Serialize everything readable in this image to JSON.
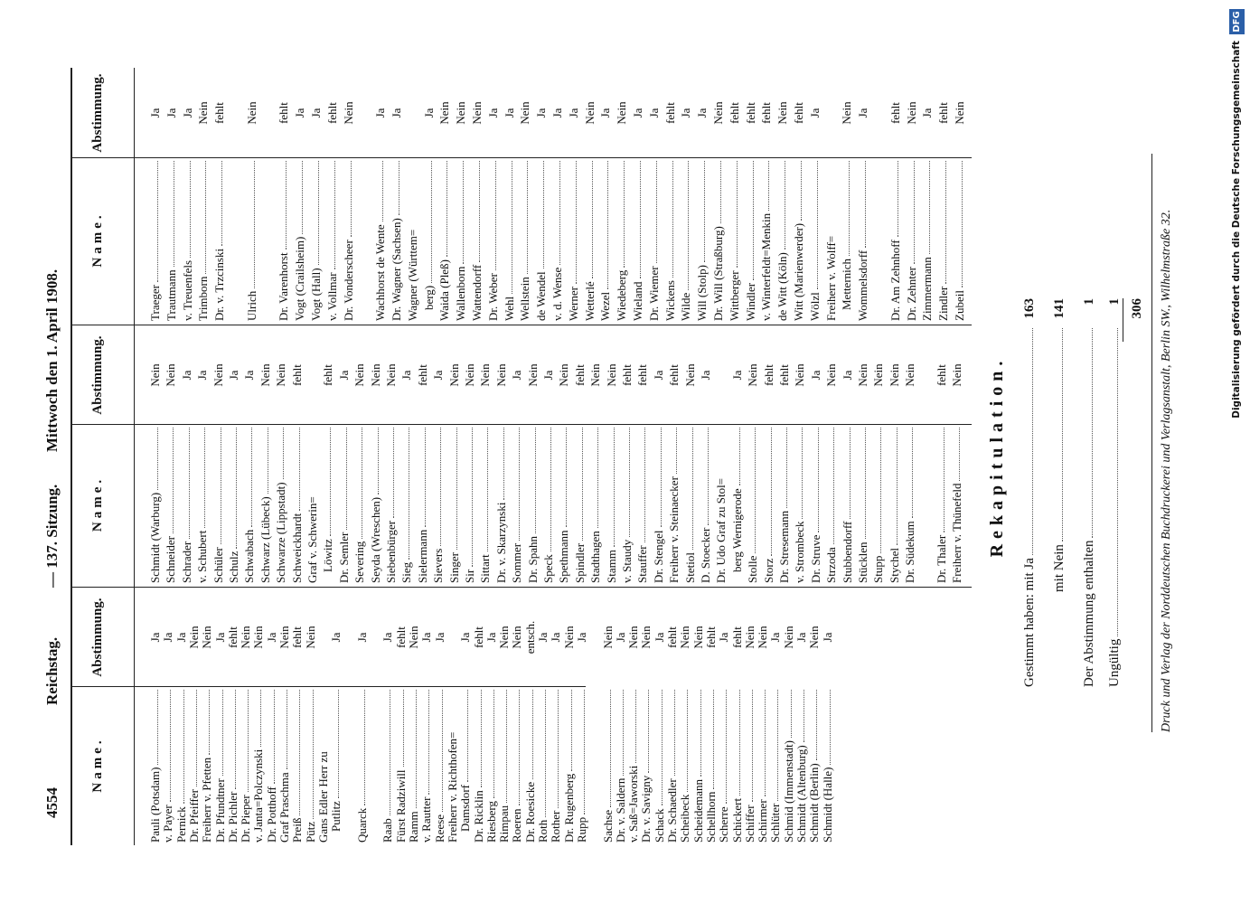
{
  "header": {
    "page_number": "4554",
    "body": "Reichstag.",
    "session": "— 137. Sitzung.",
    "date": "Mittwoch den 1. April 1908."
  },
  "table": {
    "columns": [
      {
        "name_heading": "Name.",
        "vote_heading": "Abstimmung.",
        "groups": [
          {
            "rows": [
              {
                "name": "Pauli (Potsdam)",
                "vote": "Ja"
              },
              {
                "name": "v. Payer",
                "vote": "Ja"
              },
              {
                "name": "Pernick",
                "vote": "Ja"
              },
              {
                "name": "Dr. Pfeiffer",
                "vote": "Nein"
              },
              {
                "name": "Freiherr v. Pfetten",
                "vote": "Nein"
              },
              {
                "name": "Dr. Pfundtner",
                "vote": "Ja"
              },
              {
                "name": "Dr. Pichler",
                "vote": "fehlt"
              },
              {
                "name": "Dr. Pieper",
                "vote": "Nein"
              },
              {
                "name": "v. Janta=Polczynski",
                "vote": "Nein"
              },
              {
                "name": "Dr. Potthoff",
                "vote": "Ja"
              },
              {
                "name": "Graf Praschma",
                "vote": "Nein"
              },
              {
                "name": "Preiß",
                "vote": "fehlt"
              },
              {
                "name": "Pütz",
                "vote": "Nein"
              },
              {
                "name": [
                  "Gans Edler Herr zu",
                  "Putlitz"
                ],
                "vote": "Ja"
              }
            ]
          },
          {
            "rows": [
              {
                "name": "Quarck",
                "vote": "Ja"
              }
            ]
          },
          {
            "rows": [
              {
                "name": "Raab",
                "vote": "Ja"
              },
              {
                "name": "Fürst Radziwill",
                "vote": "fehlt"
              },
              {
                "name": "Ramm",
                "vote": "Nein"
              },
              {
                "name": "v. Rautter",
                "vote": "Ja"
              },
              {
                "name": "Reese",
                "vote": "Ja"
              },
              {
                "name": [
                  "Freiherr v. Richthofen=",
                  "Damsdorf"
                ],
                "vote": "Ja"
              },
              {
                "name": "Dr. Ricklin",
                "vote": "fehlt"
              },
              {
                "name": "Riesberg",
                "vote": "Ja"
              },
              {
                "name": "Rimpau",
                "vote": "Nein"
              },
              {
                "name": "Roeren",
                "vote": "Nein"
              },
              {
                "name": "Dr. Roesicke",
                "vote": "entsch."
              },
              {
                "name": "Roth",
                "vote": "Ja"
              },
              {
                "name": "Rother",
                "vote": "Ja"
              },
              {
                "name": "Dr. Rugenberg",
                "vote": "Nein"
              },
              {
                "name": "Rupp",
                "vote": "Ja"
              }
            ]
          },
          {
            "rows": [
              {
                "name": "Sachse",
                "vote": "Nein"
              },
              {
                "name": "Dr. v. Saldern",
                "vote": "Ja"
              },
              {
                "name": "v. Saß=Jaworski",
                "vote": "Nein"
              },
              {
                "name": "Dr. v. Savigny",
                "vote": "Nein"
              },
              {
                "name": "Schack",
                "vote": "Ja"
              },
              {
                "name": "Dr. Schaedler",
                "vote": "fehlt"
              },
              {
                "name": "Scheibeck",
                "vote": "Nein"
              },
              {
                "name": "Scheidemann",
                "vote": "Nein"
              },
              {
                "name": "Schellhorn",
                "vote": "fehlt"
              },
              {
                "name": "Scherre",
                "vote": "Ja"
              },
              {
                "name": "Schickert",
                "vote": "fehlt"
              },
              {
                "name": "Schiffer",
                "vote": "Nein"
              },
              {
                "name": "Schirmer",
                "vote": "Nein"
              },
              {
                "name": "Schlüter",
                "vote": "Ja"
              },
              {
                "name": "Schmid (Immenstadt)",
                "vote": "Nein"
              },
              {
                "name": "Schmidt (Altenburg)",
                "vote": "Ja"
              },
              {
                "name": "Schmidt (Berlin)",
                "vote": "Nein"
              },
              {
                "name": "Schmidt (Halle)",
                "vote": "Ja"
              }
            ]
          }
        ]
      },
      {
        "name_heading": "Name.",
        "vote_heading": "Abstimmung.",
        "groups": [
          {
            "rows": [
              {
                "name": "Schmidt (Warburg)",
                "vote": "Nein"
              },
              {
                "name": "Schneider",
                "vote": "Nein"
              },
              {
                "name": "Schrader",
                "vote": "Ja"
              },
              {
                "name": "v. Schubert",
                "vote": "Ja"
              },
              {
                "name": "Schüler",
                "vote": "Nein"
              },
              {
                "name": "Schulz",
                "vote": "Ja"
              },
              {
                "name": "Schwabach",
                "vote": "Ja"
              },
              {
                "name": "Schwarz (Lübeck)",
                "vote": "Nein"
              },
              {
                "name": "Schwarze (Lippstadt)",
                "vote": "Nein"
              },
              {
                "name": "Schweickhardt",
                "vote": "fehlt"
              },
              {
                "name": [
                  "Graf v. Schwerin=",
                  "Löwitz"
                ],
                "vote": "fehlt"
              },
              {
                "name": "Dr. Semler",
                "vote": "Ja"
              },
              {
                "name": "Severing",
                "vote": "Nein"
              },
              {
                "name": "Seyda (Wreschen)",
                "vote": "Nein"
              },
              {
                "name": "Siebenbürger",
                "vote": "Nein"
              },
              {
                "name": "Sieg",
                "vote": "Ja"
              },
              {
                "name": "Sielermann",
                "vote": "fehlt"
              },
              {
                "name": "Sievers",
                "vote": "Ja"
              },
              {
                "name": "Singer",
                "vote": "Nein"
              },
              {
                "name": "Sir",
                "vote": "Nein"
              },
              {
                "name": "Sittart",
                "vote": "Nein"
              },
              {
                "name": "Dr. v. Skarzynski",
                "vote": "Nein"
              },
              {
                "name": "Sommer",
                "vote": "Ja"
              },
              {
                "name": "Dr. Spahn",
                "vote": "Nein"
              },
              {
                "name": "Speck",
                "vote": "Ja"
              },
              {
                "name": "Spethmann",
                "vote": "Nein"
              },
              {
                "name": "Spindler",
                "vote": "fehlt"
              },
              {
                "name": "Stadthagen",
                "vote": "Nein"
              },
              {
                "name": "Stamm",
                "vote": "Nein"
              },
              {
                "name": "v. Staudy",
                "vote": "fehlt"
              },
              {
                "name": "Stauffer",
                "vote": "fehlt"
              },
              {
                "name": "Dr. Stengel",
                "vote": "Ja"
              },
              {
                "name": "Freiherr v. Steinaecker",
                "vote": "fehlt"
              },
              {
                "name": "Stetiol",
                "vote": "Nein"
              },
              {
                "name": "D. Stoecker",
                "vote": "Ja"
              },
              {
                "name": [
                  "Dr. Udo Graf zu Stol=",
                  "berg Wernigerode"
                ],
                "vote": "Ja"
              },
              {
                "name": "Stolle",
                "vote": "Nein"
              },
              {
                "name": "Storz",
                "vote": "fehlt"
              },
              {
                "name": "Dr. Stresemann",
                "vote": "fehlt"
              },
              {
                "name": "v. Strombeck",
                "vote": "Nein"
              },
              {
                "name": "Dr. Struve",
                "vote": "Ja"
              },
              {
                "name": "Strzoda",
                "vote": "Nein"
              },
              {
                "name": "Stubbendorff",
                "vote": "Ja"
              },
              {
                "name": "Stücklen",
                "vote": "Nein"
              },
              {
                "name": "Stupp",
                "vote": "Nein"
              },
              {
                "name": "Stychel",
                "vote": "Nein"
              },
              {
                "name": "Dr. Südekum",
                "vote": "Nein"
              }
            ]
          },
          {
            "rows": [
              {
                "name": "Dr. Thaler",
                "vote": "fehlt"
              },
              {
                "name": "Freiherr v. Thünefeld",
                "vote": "Nein"
              }
            ]
          }
        ]
      },
      {
        "name_heading": "Name.",
        "vote_heading": "Abstimmung.",
        "groups": [
          {
            "rows": [
              {
                "name": "Traeger",
                "vote": "Ja"
              },
              {
                "name": "Trautmann",
                "vote": "Ja"
              },
              {
                "name": "v. Treuenfels",
                "vote": "Ja"
              },
              {
                "name": "Trimborn",
                "vote": "Nein"
              },
              {
                "name": "Dr. v. Trzcinski",
                "vote": "fehlt"
              }
            ]
          },
          {
            "rows": [
              {
                "name": "Ulrich",
                "vote": "Nein"
              }
            ]
          },
          {
            "rows": [
              {
                "name": "Dr. Varenhorst",
                "vote": "fehlt"
              },
              {
                "name": "Vogt (Crailsheim)",
                "vote": "Ja"
              },
              {
                "name": "Vogt (Hall)",
                "vote": "Ja"
              },
              {
                "name": "v. Vollmar",
                "vote": "fehlt"
              },
              {
                "name": "Dr. Vonderscheer",
                "vote": "Nein"
              }
            ]
          },
          {
            "rows": [
              {
                "name": "Wachhorst de Wente",
                "vote": "Ja"
              },
              {
                "name": "Dr. Wagner (Sachsen)",
                "vote": "Ja"
              },
              {
                "name": [
                  "Wagner (Württem=",
                  "berg)"
                ],
                "vote": "Ja"
              },
              {
                "name": "Waida (Pleß)",
                "vote": "Nein"
              },
              {
                "name": "Wallenborn",
                "vote": "Nein"
              },
              {
                "name": "Wattendorff",
                "vote": "Nein"
              },
              {
                "name": "Dr. Weber",
                "vote": "Ja"
              },
              {
                "name": "Wehl",
                "vote": "Ja"
              },
              {
                "name": "Wellstein",
                "vote": "Nein"
              },
              {
                "name": "de Wendel",
                "vote": "Ja"
              },
              {
                "name": "v. d. Wense",
                "vote": "Ja"
              },
              {
                "name": "Werner",
                "vote": "Ja"
              },
              {
                "name": "Wetterlé",
                "vote": "Nein"
              },
              {
                "name": "Wezel",
                "vote": "Ja"
              },
              {
                "name": "Wiedeberg",
                "vote": "Nein"
              },
              {
                "name": "Wieland",
                "vote": "Ja"
              },
              {
                "name": "Dr. Wiemer",
                "vote": "Ja"
              },
              {
                "name": "Wickens",
                "vote": "fehlt"
              },
              {
                "name": "Wilde",
                "vote": "Ja"
              },
              {
                "name": "Will (Stolp)",
                "vote": "Ja"
              },
              {
                "name": "Dr. Will (Straßburg)",
                "vote": "Nein"
              },
              {
                "name": "Wittberger",
                "vote": "fehlt"
              },
              {
                "name": "Windler",
                "vote": "fehlt"
              },
              {
                "name": "v. Winterfeldt=Menkin",
                "vote": "fehlt"
              },
              {
                "name": "de Witt (Köln)",
                "vote": "Nein"
              },
              {
                "name": "Witt (Marienwerder)",
                "vote": "fehlt"
              },
              {
                "name": "Wölzl",
                "vote": "Ja"
              },
              {
                "name": [
                  "Freiherr v. Wolff=",
                  "Metternich"
                ],
                "vote": "Nein"
              },
              {
                "name": "Wommelsdorff",
                "vote": "Ja"
              }
            ]
          },
          {
            "rows": [
              {
                "name": "Dr. Am Zehnhoff",
                "vote": "fehlt"
              },
              {
                "name": "Dr. Zehnter",
                "vote": "Nein"
              },
              {
                "name": "Zimmermann",
                "vote": "Ja"
              },
              {
                "name": "Zindler",
                "vote": "fehlt"
              },
              {
                "name": "Zubeil",
                "vote": "Nein"
              }
            ]
          }
        ]
      }
    ]
  },
  "recapitulation": {
    "title": "Rekapitulation.",
    "rows": [
      {
        "label": "Gestimmt haben: mit Ja",
        "value": 163
      },
      {
        "label": "mit Nein",
        "value": 141
      },
      {
        "label": "Der Abstimmung enthalten",
        "value": 1
      },
      {
        "label": "Ungültig",
        "value": 1
      }
    ],
    "total": 306
  },
  "footer": "Druck und Verlag der Norddeutschen Buchdruckerei und Verlagsanstalt, Berlin SW., Wilhelmstraße 32.",
  "stamp": {
    "text": "Digitalisierung gefördert durch die Deutsche Forschungsgemeinschaft",
    "logo": "DFG"
  }
}
